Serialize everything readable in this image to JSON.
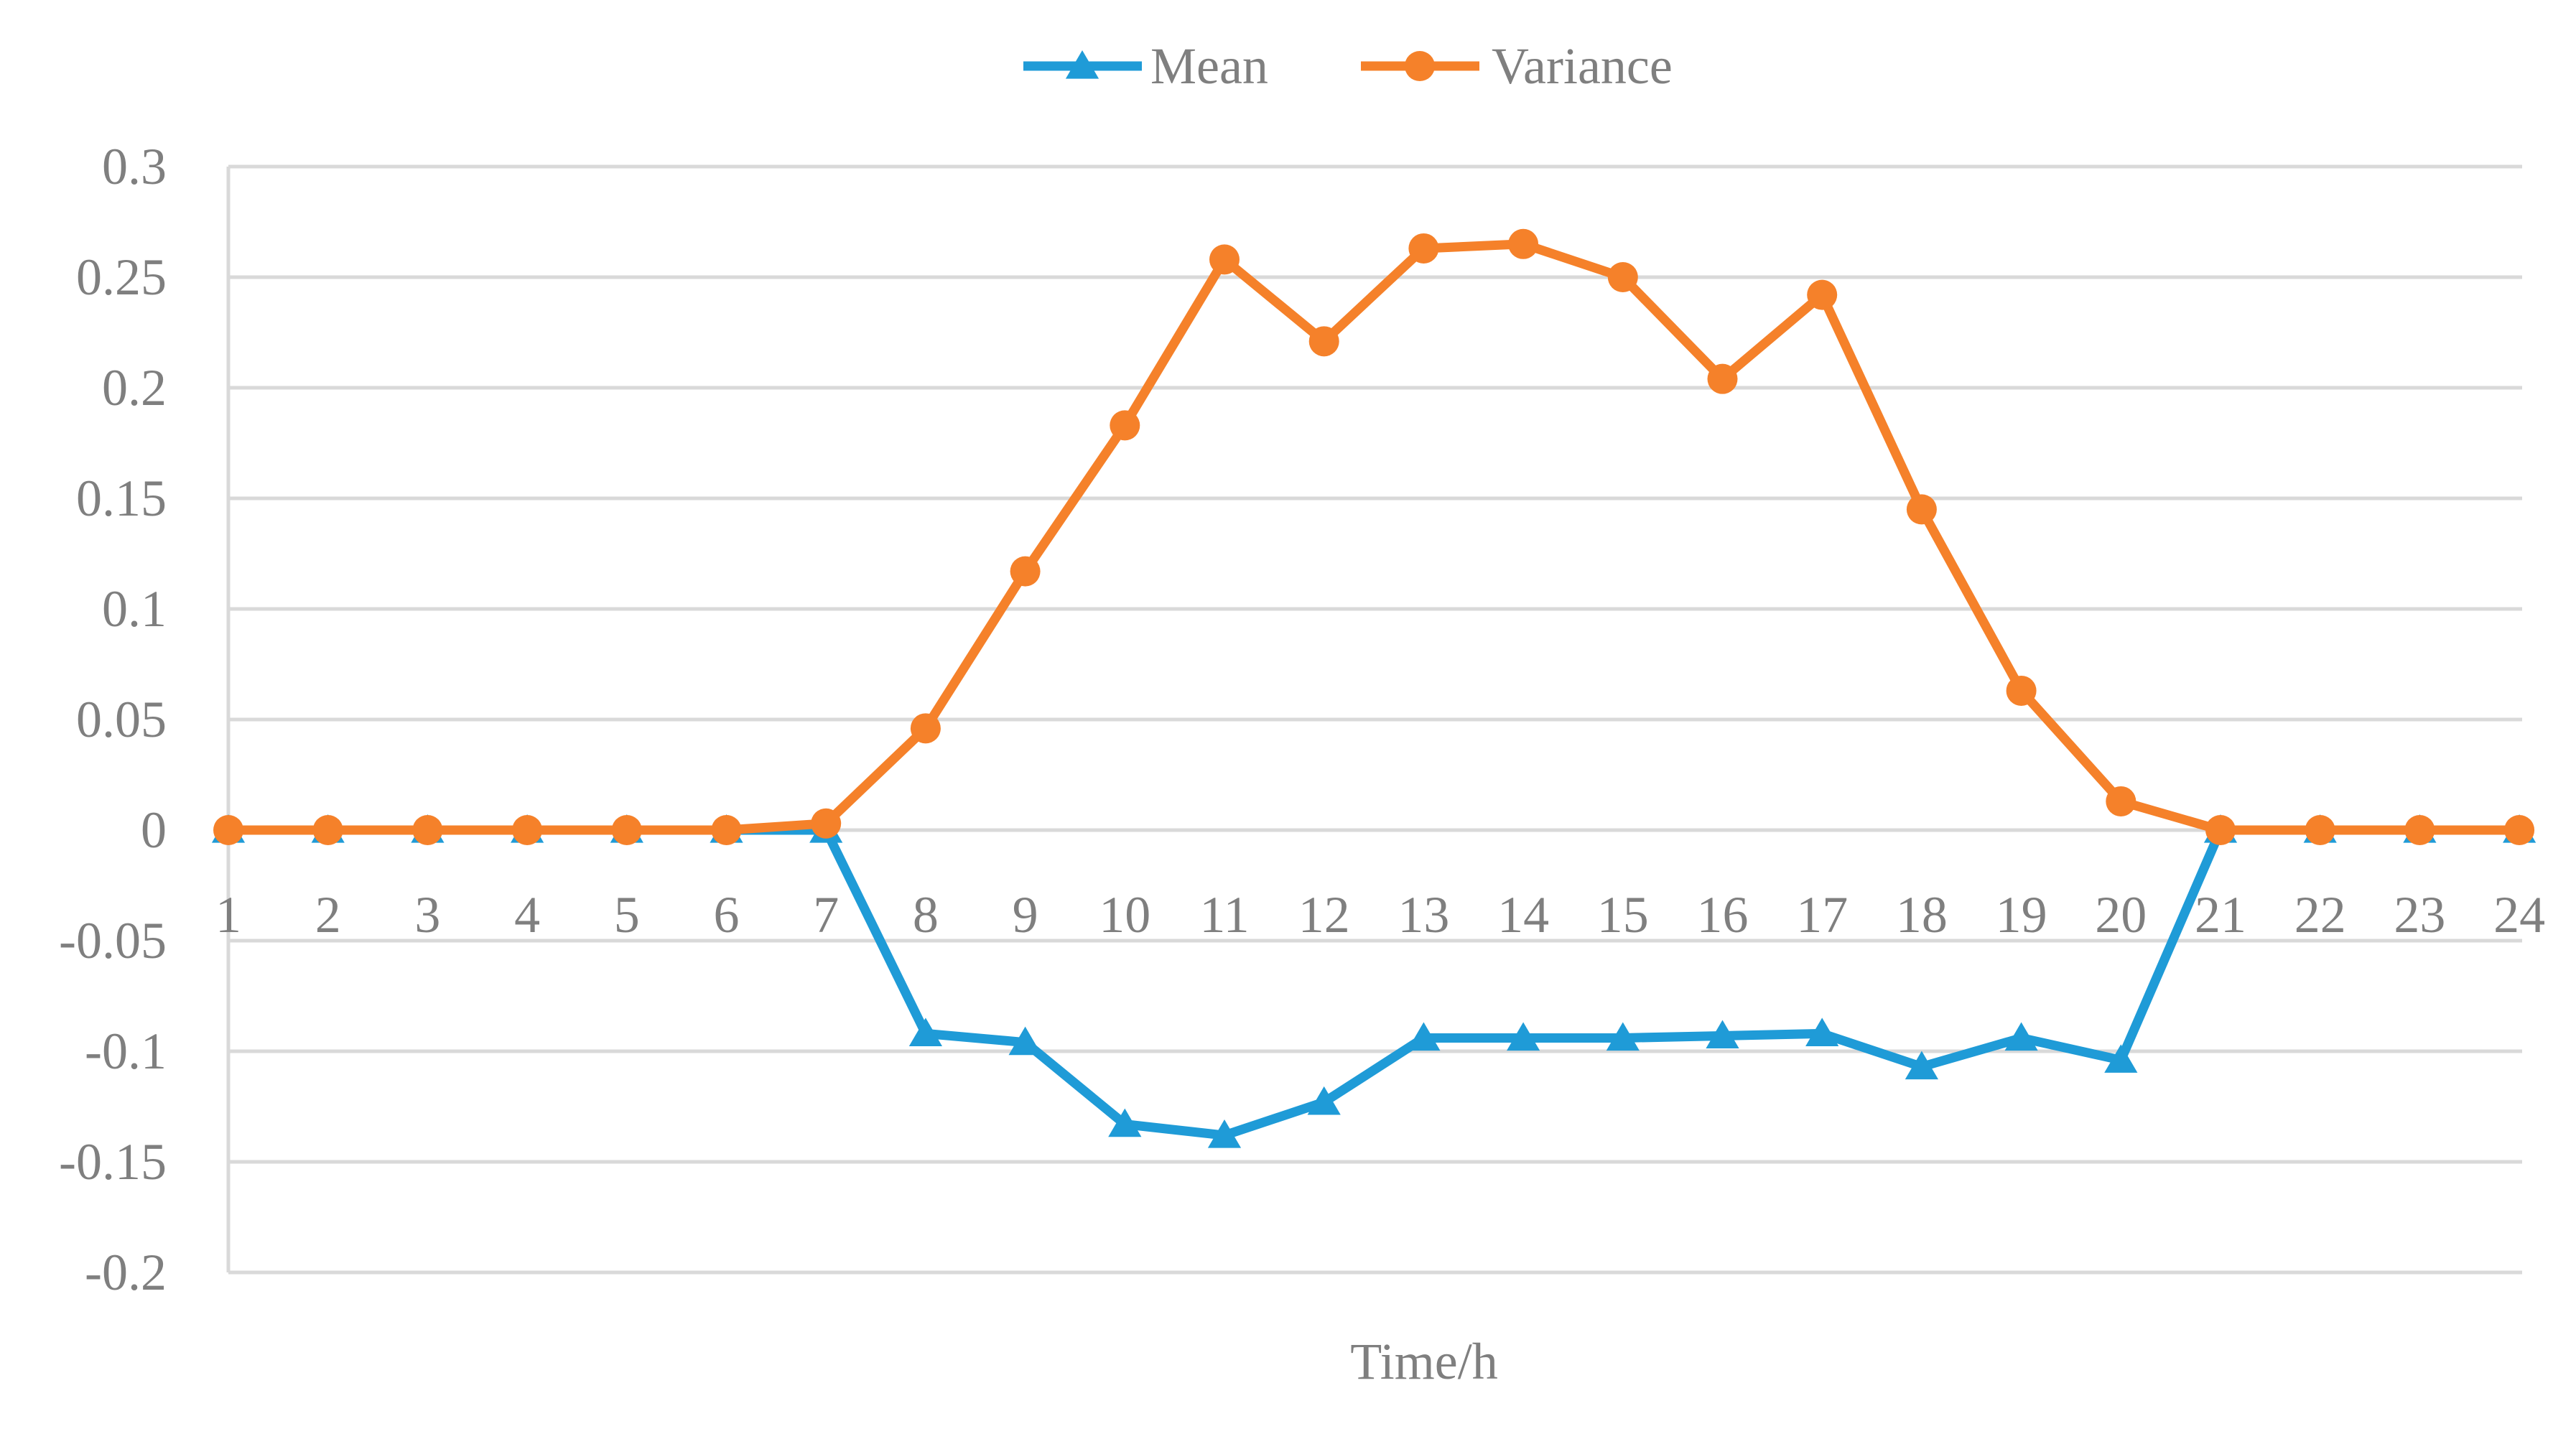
{
  "chart_data": {
    "type": "line",
    "title": "",
    "xlabel": "Time/h",
    "ylabel": "",
    "ylim": [
      -0.2,
      0.3
    ],
    "yticks": [
      -0.2,
      -0.15,
      -0.1,
      -0.05,
      0,
      0.05,
      0.1,
      0.15,
      0.2,
      0.25,
      0.3
    ],
    "ytick_labels": [
      "-0.2",
      "-0.15",
      "-0.1",
      "-0.05",
      "0",
      "0.05",
      "0.1",
      "0.15",
      "0.2",
      "0.25",
      "0.3"
    ],
    "categories": [
      "1",
      "2",
      "3",
      "4",
      "5",
      "6",
      "7",
      "8",
      "9",
      "10",
      "11",
      "12",
      "13",
      "14",
      "15",
      "16",
      "17",
      "18",
      "19",
      "20",
      "21",
      "22",
      "23",
      "24"
    ],
    "grid": true,
    "legend_position": "top",
    "series": [
      {
        "name": "Mean",
        "color": "#1f9bd7",
        "marker": "triangle",
        "values": [
          0,
          0,
          0,
          0,
          0,
          0,
          0,
          -0.092,
          -0.096,
          -0.133,
          -0.138,
          -0.123,
          -0.094,
          -0.094,
          -0.094,
          -0.093,
          -0.092,
          -0.107,
          -0.094,
          -0.104,
          0,
          0,
          0,
          0
        ]
      },
      {
        "name": "Variance",
        "color": "#f5812a",
        "marker": "circle",
        "values": [
          0,
          0,
          0,
          0,
          0,
          0,
          0.003,
          0.046,
          0.117,
          0.183,
          0.258,
          0.221,
          0.263,
          0.265,
          0.25,
          0.204,
          0.242,
          0.145,
          0.063,
          0.013,
          0,
          0,
          0,
          0
        ]
      }
    ]
  }
}
